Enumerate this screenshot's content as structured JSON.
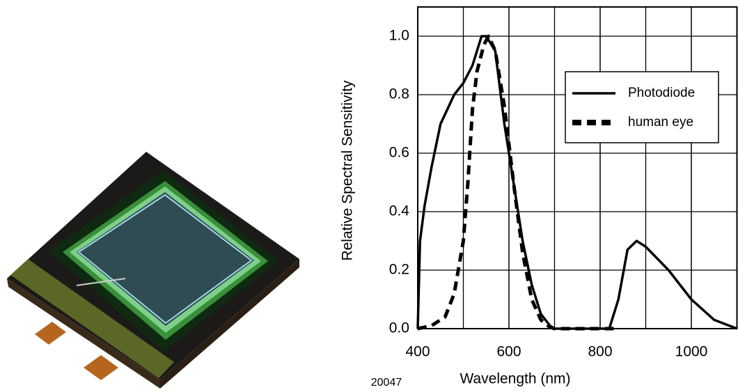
{
  "chart_data": {
    "type": "line",
    "xlabel": "Wavelength (nm)",
    "ylabel": "Relative Spectral Sensitivity",
    "annotation": "20047",
    "xlim": [
      400,
      1100
    ],
    "ylim": [
      0,
      1.1
    ],
    "xticks": [
      400,
      600,
      800,
      1000
    ],
    "yticks": [
      {
        "value": 0,
        "label": "0.0"
      },
      0.2,
      0.4,
      0.6,
      0.8,
      {
        "value": 1,
        "label": "1.0"
      }
    ],
    "x_grid": [
      500,
      600,
      700,
      800,
      900,
      1000
    ],
    "grid": true,
    "legend": "upper right",
    "series": [
      {
        "name": "Photodiode",
        "color": "#000000",
        "dash": "solid",
        "x": [
          400,
          405,
          415,
          430,
          450,
          480,
          500,
          520,
          540,
          550,
          570,
          590,
          610,
          630,
          650,
          670,
          690,
          700,
          820,
          840,
          860,
          880,
          900,
          950,
          1000,
          1050,
          1100
        ],
        "values": [
          0,
          0.3,
          0.42,
          0.55,
          0.7,
          0.8,
          0.84,
          0.9,
          1.0,
          1.0,
          0.95,
          0.7,
          0.5,
          0.3,
          0.15,
          0.05,
          0.01,
          0,
          0,
          0.1,
          0.27,
          0.3,
          0.28,
          0.2,
          0.1,
          0.03,
          0
        ]
      },
      {
        "name": "human eye",
        "color": "#000000",
        "dash": "dashed",
        "x": [
          400,
          430,
          460,
          480,
          500,
          510,
          520,
          530,
          545,
          555,
          570,
          590,
          610,
          630,
          650,
          670,
          690,
          700,
          830
        ],
        "values": [
          0,
          0.01,
          0.04,
          0.12,
          0.3,
          0.5,
          0.75,
          0.88,
          0.97,
          1.0,
          0.95,
          0.76,
          0.5,
          0.26,
          0.1,
          0.03,
          0.005,
          0,
          0
        ]
      }
    ]
  }
}
